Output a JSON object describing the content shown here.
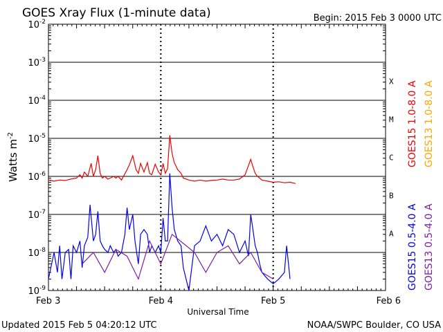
{
  "chart_data": {
    "type": "line",
    "title": "GOES Xray Flux (1-minute data)",
    "begin_label": "Begin:  2015 Feb 3 0000 UTC",
    "xlabel": "Universal Time",
    "ylabel": "Watts m",
    "ylabel_exponent": "-2",
    "yscale": "log",
    "ylim": [
      1e-09,
      0.01
    ],
    "x_ticks": [
      "Feb 3",
      "Feb 4",
      "Feb 5",
      "Feb 6"
    ],
    "x_range_days": [
      0,
      3
    ],
    "y_ticks": [
      {
        "base": "10",
        "exp": "-9"
      },
      {
        "base": "10",
        "exp": "-8"
      },
      {
        "base": "10",
        "exp": "-7"
      },
      {
        "base": "10",
        "exp": "-6"
      },
      {
        "base": "10",
        "exp": "-5"
      },
      {
        "base": "10",
        "exp": "-4"
      },
      {
        "base": "10",
        "exp": "-3"
      },
      {
        "base": "10",
        "exp": "-2"
      }
    ],
    "flare_classes": [
      {
        "label": "A",
        "value": 1e-08
      },
      {
        "label": "B",
        "value": 1e-07
      },
      {
        "label": "C",
        "value": 1e-06
      },
      {
        "label": "M",
        "value": 1e-05
      },
      {
        "label": "X",
        "value": 0.0001
      }
    ],
    "grid": true,
    "legend_position": "right (vertical)",
    "series": [
      {
        "name": "GOES15 1.0-8.0 A",
        "color": "#ee0000",
        "x": [
          0.0,
          0.05,
          0.1,
          0.15,
          0.2,
          0.25,
          0.28,
          0.3,
          0.32,
          0.35,
          0.38,
          0.4,
          0.42,
          0.44,
          0.46,
          0.48,
          0.5,
          0.53,
          0.55,
          0.58,
          0.6,
          0.62,
          0.65,
          0.7,
          0.72,
          0.75,
          0.78,
          0.8,
          0.82,
          0.85,
          0.88,
          0.9,
          0.92,
          0.95,
          0.98,
          1.0,
          1.02,
          1.04,
          1.06,
          1.08,
          1.1,
          1.12,
          1.15,
          1.18,
          1.2,
          1.25,
          1.3,
          1.35,
          1.4,
          1.45,
          1.5,
          1.55,
          1.6,
          1.65,
          1.7,
          1.75,
          1.8,
          1.82,
          1.84,
          1.86,
          1.88,
          1.9,
          1.95,
          2.0,
          2.05,
          2.1,
          2.15,
          2.2
        ],
        "y": [
          8e-07,
          7.5e-07,
          8e-07,
          7.8e-07,
          8.5e-07,
          9e-07,
          1.1e-06,
          9e-07,
          1.3e-06,
          1e-06,
          2.2e-06,
          1e-06,
          1.5e-06,
          3.5e-06,
          1.2e-06,
          9e-07,
          1e-06,
          8.5e-07,
          9e-07,
          1e-06,
          9e-07,
          1e-06,
          8e-07,
          1.5e-06,
          2e-06,
          3.5e-06,
          1.5e-06,
          1.2e-06,
          2.2e-06,
          1.3e-06,
          2.3e-06,
          1.2e-06,
          1.1e-06,
          2.1e-06,
          1.3e-06,
          1.1e-06,
          2.2e-06,
          1.2e-06,
          1.6e-06,
          1.2e-05,
          4e-06,
          2.3e-06,
          1.5e-06,
          1.2e-06,
          9e-07,
          8e-07,
          7.5e-07,
          8e-07,
          7.5e-07,
          7.8e-07,
          8e-07,
          8.5e-07,
          8e-07,
          8e-07,
          8.5e-07,
          1.1e-06,
          2.8e-06,
          1.8e-06,
          1.2e-06,
          1e-06,
          9e-07,
          8e-07,
          7.5e-07,
          7e-07,
          7.2e-07,
          6.8e-07,
          7e-07,
          6.5e-07
        ]
      },
      {
        "name": "GOES13 1.0-8.0 A",
        "color": "#ffa500",
        "x": [],
        "y": []
      },
      {
        "name": "GOES15 0.5-4.0 A",
        "color": "#0000ee",
        "x": [
          0.0,
          0.05,
          0.08,
          0.1,
          0.12,
          0.15,
          0.18,
          0.2,
          0.22,
          0.25,
          0.28,
          0.3,
          0.32,
          0.35,
          0.37,
          0.4,
          0.42,
          0.44,
          0.46,
          0.48,
          0.5,
          0.53,
          0.55,
          0.58,
          0.6,
          0.62,
          0.65,
          0.68,
          0.7,
          0.72,
          0.75,
          0.77,
          0.8,
          0.82,
          0.85,
          0.88,
          0.9,
          0.92,
          0.95,
          0.98,
          1.0,
          1.02,
          1.04,
          1.06,
          1.08,
          1.1,
          1.12,
          1.15,
          1.18,
          1.2,
          1.25,
          1.3,
          1.35,
          1.4,
          1.45,
          1.5,
          1.55,
          1.6,
          1.65,
          1.7,
          1.75,
          1.78,
          1.8,
          1.82,
          1.84,
          1.86,
          1.88,
          1.9,
          1.95,
          2.0,
          2.05,
          2.1,
          2.12,
          2.15
        ],
        "y": [
          2e-09,
          1e-08,
          3e-09,
          1.5e-08,
          2e-09,
          1e-08,
          1.2e-08,
          2e-09,
          1.5e-08,
          1e-08,
          2e-08,
          4e-09,
          1.5e-08,
          2.5e-08,
          1.8e-07,
          2e-08,
          3e-08,
          1.2e-07,
          2e-08,
          1.5e-08,
          1.2e-08,
          1e-08,
          1.5e-08,
          1e-08,
          1.2e-08,
          8e-09,
          1e-08,
          3e-08,
          1.5e-07,
          4e-08,
          1e-07,
          2e-08,
          5e-09,
          3e-08,
          4e-08,
          3e-08,
          1e-08,
          1.5e-08,
          1e-08,
          1.5e-08,
          1e-08,
          8e-08,
          2e-08,
          2e-08,
          1.2e-06,
          1.5e-07,
          4e-08,
          2e-08,
          1.5e-08,
          4e-09,
          1e-09,
          1.5e-08,
          2e-08,
          5e-08,
          2e-08,
          3e-08,
          1.5e-08,
          4e-08,
          3e-08,
          1e-08,
          2e-08,
          8e-09,
          1e-07,
          4e-08,
          1.5e-08,
          1e-08,
          5e-09,
          3e-09,
          2e-09,
          1.5e-09,
          2e-09,
          3e-09,
          1.5e-08,
          2e-09
        ]
      },
      {
        "name": "GOES13 0.5-4.0 A",
        "color": "#7a1fa2",
        "x": [
          0.3,
          0.4,
          0.5,
          0.6,
          0.7,
          0.8,
          0.9,
          1.0,
          1.1,
          1.3,
          1.4,
          1.5,
          1.6,
          1.7,
          1.8,
          1.9,
          2.0
        ],
        "y": [
          5e-09,
          1e-08,
          3e-09,
          1.2e-08,
          8e-09,
          2e-09,
          2e-08,
          5e-09,
          3e-08,
          1e-08,
          3e-09,
          1e-08,
          1.5e-08,
          5e-09,
          1e-08,
          3e-09,
          2e-09
        ]
      }
    ]
  },
  "footer": {
    "updated": "Updated 2015 Feb  5 04:20:12 UTC",
    "source": "NOAA/SWPC Boulder, CO USA"
  }
}
